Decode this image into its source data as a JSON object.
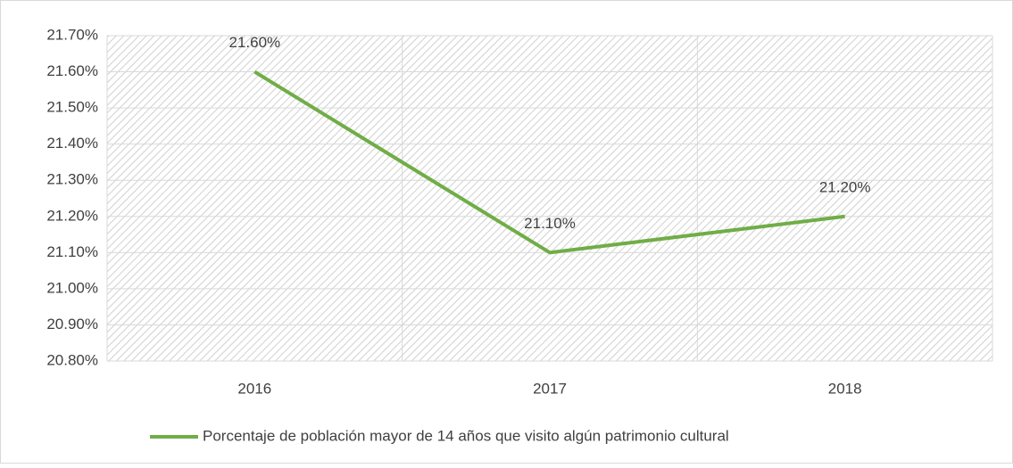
{
  "chart_data": {
    "type": "line",
    "categories": [
      "2016",
      "2017",
      "2018"
    ],
    "series": [
      {
        "name": "Porcentaje de población mayor de 14 años que visito algún patrimonio cultural",
        "color": "#70ad47",
        "values": [
          21.6,
          21.1,
          21.2
        ],
        "value_labels": [
          "21.60%",
          "21.10%",
          "21.20%"
        ]
      }
    ],
    "ylim": [
      20.8,
      21.7
    ],
    "yticks": [
      {
        "value": 20.8,
        "label": "20.80%"
      },
      {
        "value": 20.9,
        "label": "20.90%"
      },
      {
        "value": 21.0,
        "label": "21.00%"
      },
      {
        "value": 21.1,
        "label": "21.10%"
      },
      {
        "value": 21.2,
        "label": "21.20%"
      },
      {
        "value": 21.3,
        "label": "21.30%"
      },
      {
        "value": 21.4,
        "label": "21.40%"
      },
      {
        "value": 21.5,
        "label": "21.50%"
      },
      {
        "value": 21.6,
        "label": "21.60%"
      },
      {
        "value": 21.7,
        "label": "21.70%"
      }
    ],
    "grid": true,
    "legend": "bottom"
  }
}
